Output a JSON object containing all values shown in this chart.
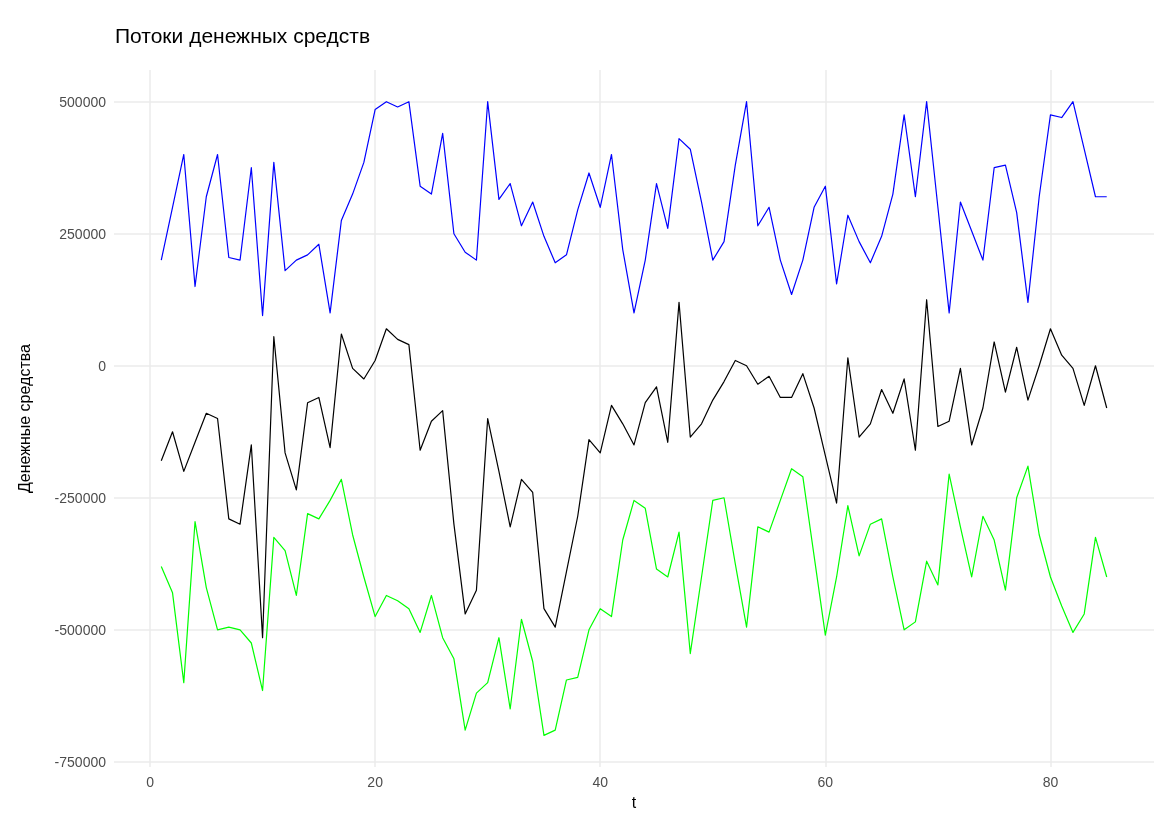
{
  "chart_data": {
    "type": "line",
    "title": "Потоки денежных средств",
    "xlabel": "t",
    "ylabel": "Денежные средства",
    "x": [
      1,
      2,
      3,
      4,
      5,
      6,
      7,
      8,
      9,
      10,
      11,
      12,
      13,
      14,
      15,
      16,
      17,
      18,
      19,
      20,
      21,
      22,
      23,
      24,
      25,
      26,
      27,
      28,
      29,
      30,
      31,
      32,
      33,
      34,
      35,
      36,
      37,
      38,
      39,
      40,
      41,
      42,
      43,
      44,
      45,
      46,
      47,
      48,
      49,
      50,
      51,
      52,
      53,
      54,
      55,
      56,
      57,
      58,
      59,
      60,
      61,
      62,
      63,
      64,
      65,
      66,
      67,
      68,
      69,
      70,
      71,
      72,
      73,
      74,
      75,
      76,
      77,
      78,
      79,
      80,
      81,
      82,
      83,
      84,
      85
    ],
    "series": [
      {
        "color": "#0000ff",
        "values": [
          200000,
          300000,
          400000,
          150000,
          320000,
          400000,
          205000,
          200000,
          375000,
          95000,
          385000,
          180000,
          200000,
          210000,
          230000,
          100000,
          275000,
          325000,
          385000,
          485000,
          500000,
          490000,
          500000,
          340000,
          325000,
          440000,
          250000,
          215000,
          200000,
          500000,
          315000,
          345000,
          265000,
          310000,
          245000,
          195000,
          210000,
          295000,
          365000,
          300000,
          400000,
          220000,
          100000,
          200000,
          345000,
          260000,
          430000,
          410000,
          310000,
          200000,
          235000,
          380000,
          500000,
          265000,
          300000,
          200000,
          135000,
          200000,
          300000,
          340000,
          155000,
          285000,
          235000,
          195000,
          245000,
          325000,
          475000,
          320000,
          500000,
          300000,
          100000,
          310000,
          255000,
          200000,
          375000,
          380000,
          290000,
          120000,
          320000,
          475000,
          470000,
          500000,
          410000,
          320000,
          320000
        ]
      },
      {
        "color": "#000000",
        "values": [
          -180000,
          -125000,
          -200000,
          -145000,
          -90000,
          -100000,
          -290000,
          -300000,
          -150000,
          -515000,
          55000,
          -165000,
          -235000,
          -70000,
          -60000,
          -155000,
          60000,
          -5000,
          -25000,
          10000,
          70000,
          50000,
          40000,
          -160000,
          -105000,
          -85000,
          -300000,
          -470000,
          -425000,
          -100000,
          -200000,
          -305000,
          -215000,
          -240000,
          -460000,
          -495000,
          -390000,
          -285000,
          -140000,
          -165000,
          -75000,
          -110000,
          -150000,
          -70000,
          -40000,
          -145000,
          120000,
          -135000,
          -110000,
          -65000,
          -30000,
          10000,
          0,
          -35000,
          -20000,
          -60000,
          -60000,
          -15000,
          -80000,
          -170000,
          -260000,
          15000,
          -135000,
          -110000,
          -45000,
          -90000,
          -25000,
          -160000,
          125000,
          -115000,
          -105000,
          -5000,
          -150000,
          -80000,
          45000,
          -50000,
          35000,
          -65000,
          0,
          70000,
          20000,
          -5000,
          -75000,
          0,
          -80000
        ]
      },
      {
        "color": "#00ff00",
        "values": [
          -380000,
          -430000,
          -600000,
          -295000,
          -420000,
          -500000,
          -495000,
          -500000,
          -525000,
          -615000,
          -325000,
          -350000,
          -435000,
          -280000,
          -290000,
          -255000,
          -215000,
          -320000,
          -400000,
          -475000,
          -435000,
          -445000,
          -460000,
          -505000,
          -435000,
          -515000,
          -555000,
          -690000,
          -620000,
          -600000,
          -515000,
          -650000,
          -480000,
          -560000,
          -700000,
          -690000,
          -595000,
          -590000,
          -500000,
          -460000,
          -475000,
          -330000,
          -255000,
          -270000,
          -385000,
          -400000,
          -315000,
          -545000,
          -400000,
          -255000,
          -250000,
          -375000,
          -495000,
          -305000,
          -315000,
          -255000,
          -195000,
          -210000,
          -360000,
          -510000,
          -400000,
          -265000,
          -360000,
          -300000,
          -290000,
          -400000,
          -500000,
          -485000,
          -370000,
          -415000,
          -205000,
          -305000,
          -400000,
          -285000,
          -330000,
          -425000,
          -250000,
          -190000,
          -320000,
          -400000,
          -455000,
          -505000,
          -470000,
          -325000,
          -400000
        ]
      }
    ],
    "xlim": [
      -3.2,
      89.2
    ],
    "xticks": [
      0,
      20,
      40,
      60,
      80
    ],
    "ylim": [
      -760000,
      560000
    ],
    "yticks": [
      -750000,
      -500000,
      -250000,
      0,
      250000,
      500000
    ],
    "grid": true,
    "marker": "none",
    "line_style": "solid"
  }
}
